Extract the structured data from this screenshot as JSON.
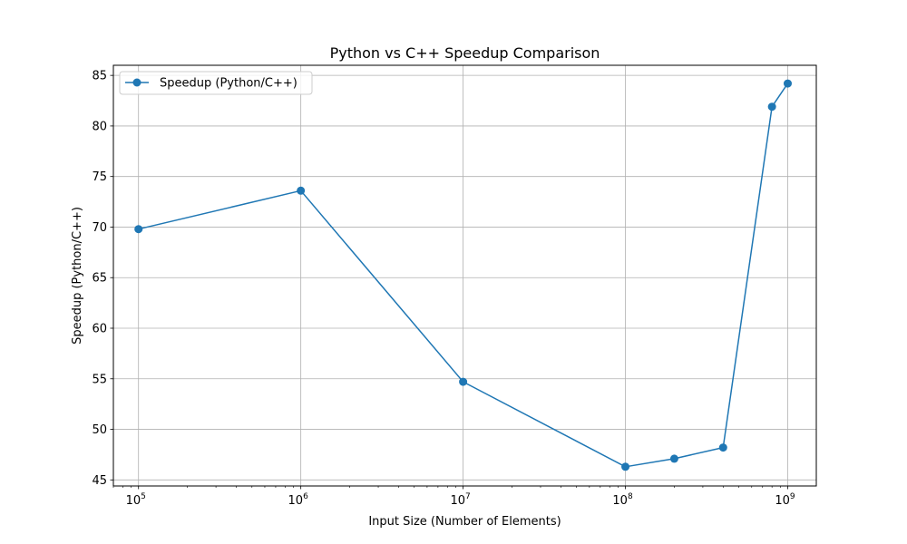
{
  "chart_data": {
    "type": "line",
    "title": "Python vs C++ Speedup Comparison",
    "xlabel": "Input Size (Number of Elements)",
    "ylabel": "Speedup (Python/C++)",
    "xscale": "log",
    "x_ticks": [
      {
        "base": "10",
        "exp": "5"
      },
      {
        "base": "10",
        "exp": "6"
      },
      {
        "base": "10",
        "exp": "7"
      },
      {
        "base": "10",
        "exp": "8"
      },
      {
        "base": "10",
        "exp": "9"
      }
    ],
    "y_ticks": [
      "45",
      "50",
      "55",
      "60",
      "65",
      "70",
      "75",
      "80",
      "85"
    ],
    "xlim": [
      70000,
      1500000000
    ],
    "ylim": [
      44.4,
      86.0
    ],
    "grid": true,
    "legend_position": "top-left",
    "series": [
      {
        "name": "Speedup (Python/C++)",
        "color": "#1f77b4",
        "marker": "circle",
        "x": [
          100000,
          1000000,
          10000000,
          100000000,
          200000000,
          400000000,
          800000000,
          1000000000
        ],
        "y": [
          69.8,
          73.6,
          54.7,
          46.3,
          47.1,
          48.2,
          81.9,
          84.2
        ]
      }
    ]
  }
}
